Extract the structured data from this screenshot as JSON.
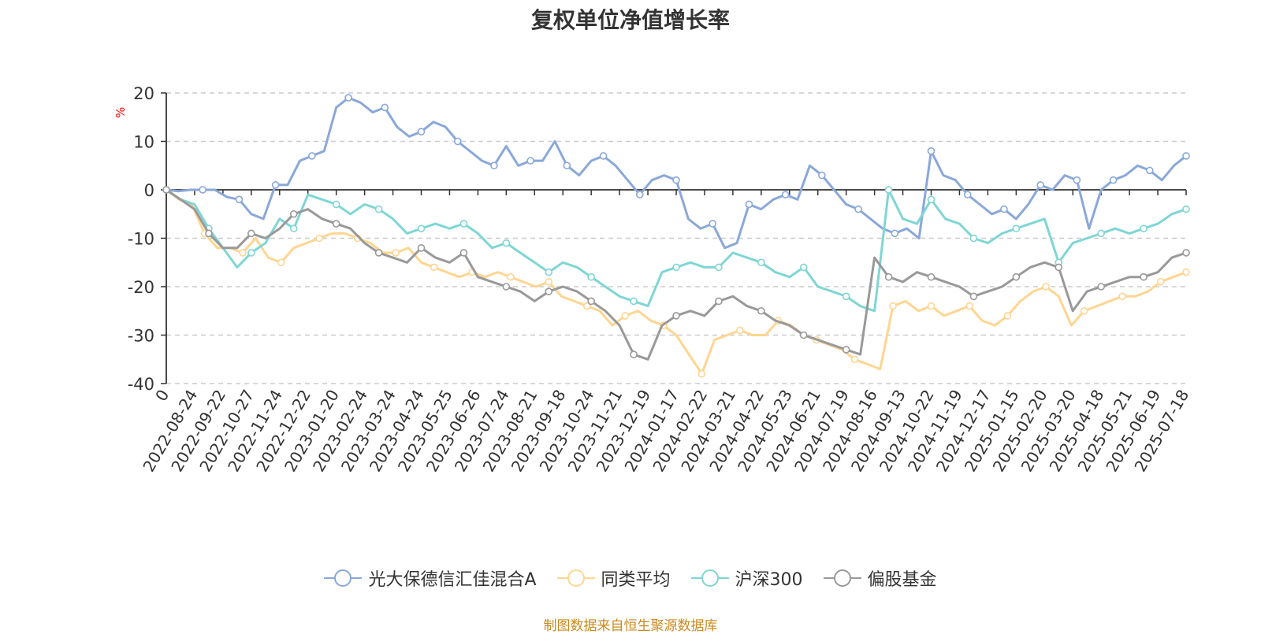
{
  "title": "复权单位净值增长率",
  "unit": "%",
  "source": "制图数据来自恒生聚源数据库",
  "chart_data": {
    "type": "line",
    "title": "复权单位净值增长率",
    "ylabel": "%",
    "ylim": [
      -40,
      20
    ],
    "yticks": [
      20,
      10,
      0,
      -10,
      -20,
      -30,
      -40
    ],
    "xticks": [
      "0",
      "2022-08-24",
      "2022-09-22",
      "2022-10-27",
      "2022-11-24",
      "2022-12-22",
      "2023-01-20",
      "2023-02-24",
      "2023-03-24",
      "2023-04-24",
      "2023-05-25",
      "2023-06-26",
      "2023-07-24",
      "2023-08-21",
      "2023-09-18",
      "2023-10-24",
      "2023-11-21",
      "2023-12-19",
      "2024-01-17",
      "2024-02-22",
      "2024-03-21",
      "2024-04-22",
      "2024-05-23",
      "2024-06-21",
      "2024-07-19",
      "2024-08-16",
      "2024-09-13",
      "2024-10-22",
      "2024-11-19",
      "2024-12-17",
      "2025-01-15",
      "2025-02-20",
      "2025-03-20",
      "2025-04-18",
      "2025-05-21",
      "2025-06-19",
      "2025-07-18"
    ],
    "grid": true,
    "legend_position": "bottom",
    "series": [
      {
        "name": "光大保德信汇佳混合A",
        "color": "#8aa8d8",
        "values": [
          0,
          -0.3,
          0,
          0,
          0,
          -1.5,
          -2,
          -5,
          -6,
          1,
          1,
          6,
          7,
          8,
          17,
          19,
          18,
          16,
          17,
          13,
          11,
          12,
          14,
          13,
          10,
          8,
          6,
          5,
          9,
          5,
          6,
          6,
          10,
          5,
          3,
          6,
          7,
          5,
          2,
          -1,
          2,
          3,
          2,
          -6,
          -8,
          -7,
          -12,
          -11,
          -3,
          -4,
          -2,
          -1,
          -2,
          5,
          3,
          0,
          -3,
          -4,
          -6,
          -8,
          -9,
          -8,
          -10,
          8,
          3,
          2,
          -1,
          -3,
          -5,
          -4,
          -6,
          -3,
          1,
          0,
          3,
          2,
          -8,
          0,
          2,
          3,
          5,
          4,
          2,
          5,
          7
        ]
      },
      {
        "name": "同类平均",
        "color": "#ffd591",
        "values": [
          0,
          -2,
          -3,
          -9,
          -12,
          -12,
          -13,
          -10,
          -14,
          -15,
          -12,
          -11,
          -10,
          -9,
          -9,
          -10,
          -11,
          -13,
          -13,
          -12,
          -15,
          -16,
          -17,
          -18,
          -17,
          -18,
          -17,
          -18,
          -19,
          -20,
          -19,
          -22,
          -23,
          -24,
          -25,
          -28,
          -26,
          -25,
          -27,
          -28,
          -30,
          -34,
          -38,
          -31,
          -30,
          -29,
          -30,
          -30,
          -27,
          -28,
          -30,
          -31,
          -32,
          -33,
          -35,
          -36,
          -37,
          -24,
          -23,
          -25,
          -24,
          -26,
          -25,
          -24,
          -27,
          -28,
          -26,
          -23,
          -21,
          -20,
          -22,
          -28,
          -25,
          -24,
          -23,
          -22,
          -22,
          -21,
          -19,
          -18,
          -17
        ]
      },
      {
        "name": "沪深300",
        "color": "#7fd6d4",
        "values": [
          0,
          -2,
          -3,
          -8,
          -12,
          -16,
          -13,
          -11,
          -6,
          -8,
          -1,
          -2,
          -3,
          -5,
          -3,
          -4,
          -6,
          -9,
          -8,
          -7,
          -8,
          -7,
          -9,
          -12,
          -11,
          -13,
          -15,
          -17,
          -15,
          -16,
          -18,
          -20,
          -22,
          -23,
          -24,
          -17,
          -16,
          -15,
          -16,
          -16,
          -13,
          -14,
          -15,
          -17,
          -18,
          -16,
          -20,
          -21,
          -22,
          -24,
          -25,
          0,
          -6,
          -7,
          -2,
          -6,
          -7,
          -10,
          -11,
          -9,
          -8,
          -7,
          -6,
          -15,
          -11,
          -10,
          -9,
          -8,
          -9,
          -8,
          -7,
          -5,
          -4
        ]
      },
      {
        "name": "偏股基金",
        "color": "#999999",
        "values": [
          0,
          -2,
          -4,
          -9,
          -12,
          -12,
          -9,
          -10,
          -8,
          -5,
          -4,
          -6,
          -7,
          -8,
          -11,
          -13,
          -14,
          -15,
          -12,
          -14,
          -15,
          -13,
          -18,
          -19,
          -20,
          -21,
          -23,
          -21,
          -20,
          -21,
          -23,
          -25,
          -28,
          -34,
          -35,
          -28,
          -26,
          -25,
          -26,
          -23,
          -22,
          -24,
          -25,
          -27,
          -28,
          -30,
          -31,
          -32,
          -33,
          -34,
          -14,
          -18,
          -19,
          -17,
          -18,
          -19,
          -20,
          -22,
          -21,
          -20,
          -18,
          -16,
          -15,
          -16,
          -25,
          -21,
          -20,
          -19,
          -18,
          -18,
          -17,
          -14,
          -13
        ]
      }
    ]
  }
}
